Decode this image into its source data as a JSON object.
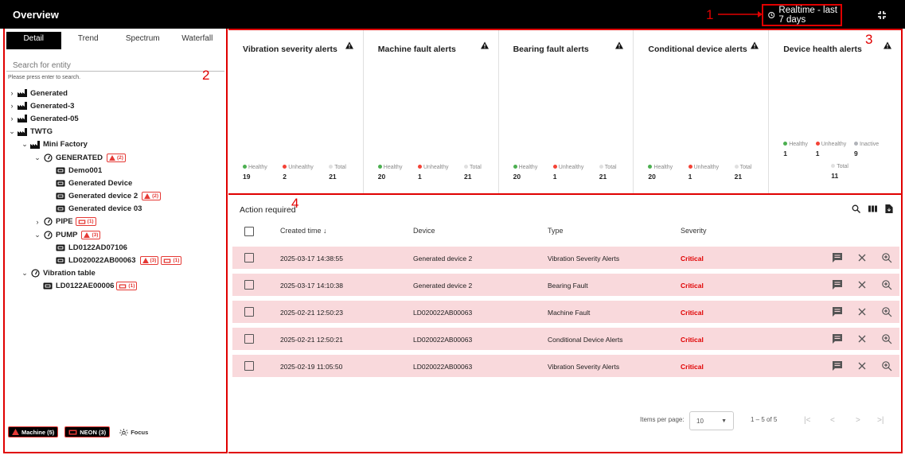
{
  "header": {
    "title": "Overview",
    "time_label": "Realtime - last 7 days"
  },
  "callouts": [
    "1",
    "2",
    "3",
    "4"
  ],
  "left_panel": {
    "tabs": [
      "Detail",
      "Trend",
      "Spectrum",
      "Waterfall"
    ],
    "search_placeholder": "Search for entity",
    "search_hint": "Please press enter to search.",
    "tree": [
      {
        "label": "Generated",
        "chevron": "›",
        "level": 0,
        "icon": "factory"
      },
      {
        "label": "Generated-3",
        "chevron": "›",
        "level": 0,
        "icon": "factory"
      },
      {
        "label": "Generated-05",
        "chevron": "›",
        "level": 0,
        "icon": "factory"
      },
      {
        "label": "TWTG",
        "chevron": "⌄",
        "level": 0,
        "icon": "factory"
      },
      {
        "label": "Mini Factory",
        "chevron": "⌄",
        "level": 1,
        "icon": "factory"
      },
      {
        "label": "GENERATED",
        "chevron": "⌄",
        "level": 2,
        "icon": "gauge",
        "alert": "(2)"
      },
      {
        "label": "Demo001",
        "chevron": "",
        "level": 3,
        "icon": "device"
      },
      {
        "label": "Generated Device",
        "chevron": "",
        "level": 3,
        "icon": "device"
      },
      {
        "label": "Generated device 2",
        "chevron": "",
        "level": 3,
        "icon": "device",
        "alert": "(2)"
      },
      {
        "label": "Generated device 03",
        "chevron": "",
        "level": 3,
        "icon": "device"
      },
      {
        "label": "PIPE",
        "chevron": "›",
        "level": 2,
        "icon": "gauge",
        "neon": "(1)"
      },
      {
        "label": "PUMP",
        "chevron": "⌄",
        "level": 2,
        "icon": "gauge",
        "alert": "(3)"
      },
      {
        "label": "LD0122AD07106",
        "chevron": "",
        "level": 3,
        "icon": "device"
      },
      {
        "label": "LD020022AB00063",
        "chevron": "",
        "level": 3,
        "icon": "device",
        "alert": "(3)",
        "neon": "(1)"
      },
      {
        "label": "Vibration table",
        "chevron": "⌄",
        "level": 1,
        "icon": "gauge"
      },
      {
        "label": "LD0122AE00006",
        "chevron": "",
        "level": 2,
        "icon": "device",
        "neon": "(1)"
      }
    ],
    "legend": {
      "machine": "Machine (5)",
      "neon": "NEON (3)",
      "focus": "Focus"
    }
  },
  "alert_cards": [
    {
      "title": "Vibration severity alerts",
      "healthy_label": "Healthy",
      "healthy": "19",
      "unhealthy_label": "Unhealthy",
      "unhealthy": "2",
      "total_label": "Total",
      "total": "21"
    },
    {
      "title": "Machine fault alerts",
      "healthy_label": "Healthy",
      "healthy": "20",
      "unhealthy_label": "Unhealthy",
      "unhealthy": "1",
      "total_label": "Total",
      "total": "21"
    },
    {
      "title": "Bearing fault alerts",
      "healthy_label": "Healthy",
      "healthy": "20",
      "unhealthy_label": "Unhealthy",
      "unhealthy": "1",
      "total_label": "Total",
      "total": "21"
    },
    {
      "title": "Conditional device alerts",
      "healthy_label": "Healthy",
      "healthy": "20",
      "unhealthy_label": "Unhealthy",
      "unhealthy": "1",
      "total_label": "Total",
      "total": "21"
    }
  ],
  "device_health": {
    "title": "Device health alerts",
    "healthy_label": "Healthy",
    "healthy": "1",
    "unhealthy_label": "Unhealthy",
    "unhealthy": "1",
    "inactive_label": "Inactive",
    "inactive": "9",
    "total_label": "Total",
    "total": "11"
  },
  "colors": {
    "healthy": "#4caf50",
    "unhealthy": "#f44336",
    "inactive": "#b0b3b8",
    "critical": "#e00000",
    "row_bg": "#f9d9dc"
  },
  "action": {
    "title": "Action required",
    "columns": [
      "Created time ↓",
      "Device",
      "Type",
      "Severity"
    ],
    "rows": [
      {
        "time": "2025-03-17 14:38:55",
        "device": "Generated device 2",
        "type": "Vibration Severity Alerts",
        "severity": "Critical"
      },
      {
        "time": "2025-03-17 14:10:38",
        "device": "Generated device 2",
        "type": "Bearing Fault",
        "severity": "Critical"
      },
      {
        "time": "2025-02-21 12:50:23",
        "device": "LD020022AB00063",
        "type": "Machine Fault",
        "severity": "Critical"
      },
      {
        "time": "2025-02-21 12:50:21",
        "device": "LD020022AB00063",
        "type": "Conditional Device Alerts",
        "severity": "Critical"
      },
      {
        "time": "2025-02-19 11:05:50",
        "device": "LD020022AB00063",
        "type": "Vibration Severity Alerts",
        "severity": "Critical"
      }
    ],
    "pager": {
      "label": "Items per page:",
      "per_page": "10",
      "range": "1 – 5 of 5"
    }
  }
}
